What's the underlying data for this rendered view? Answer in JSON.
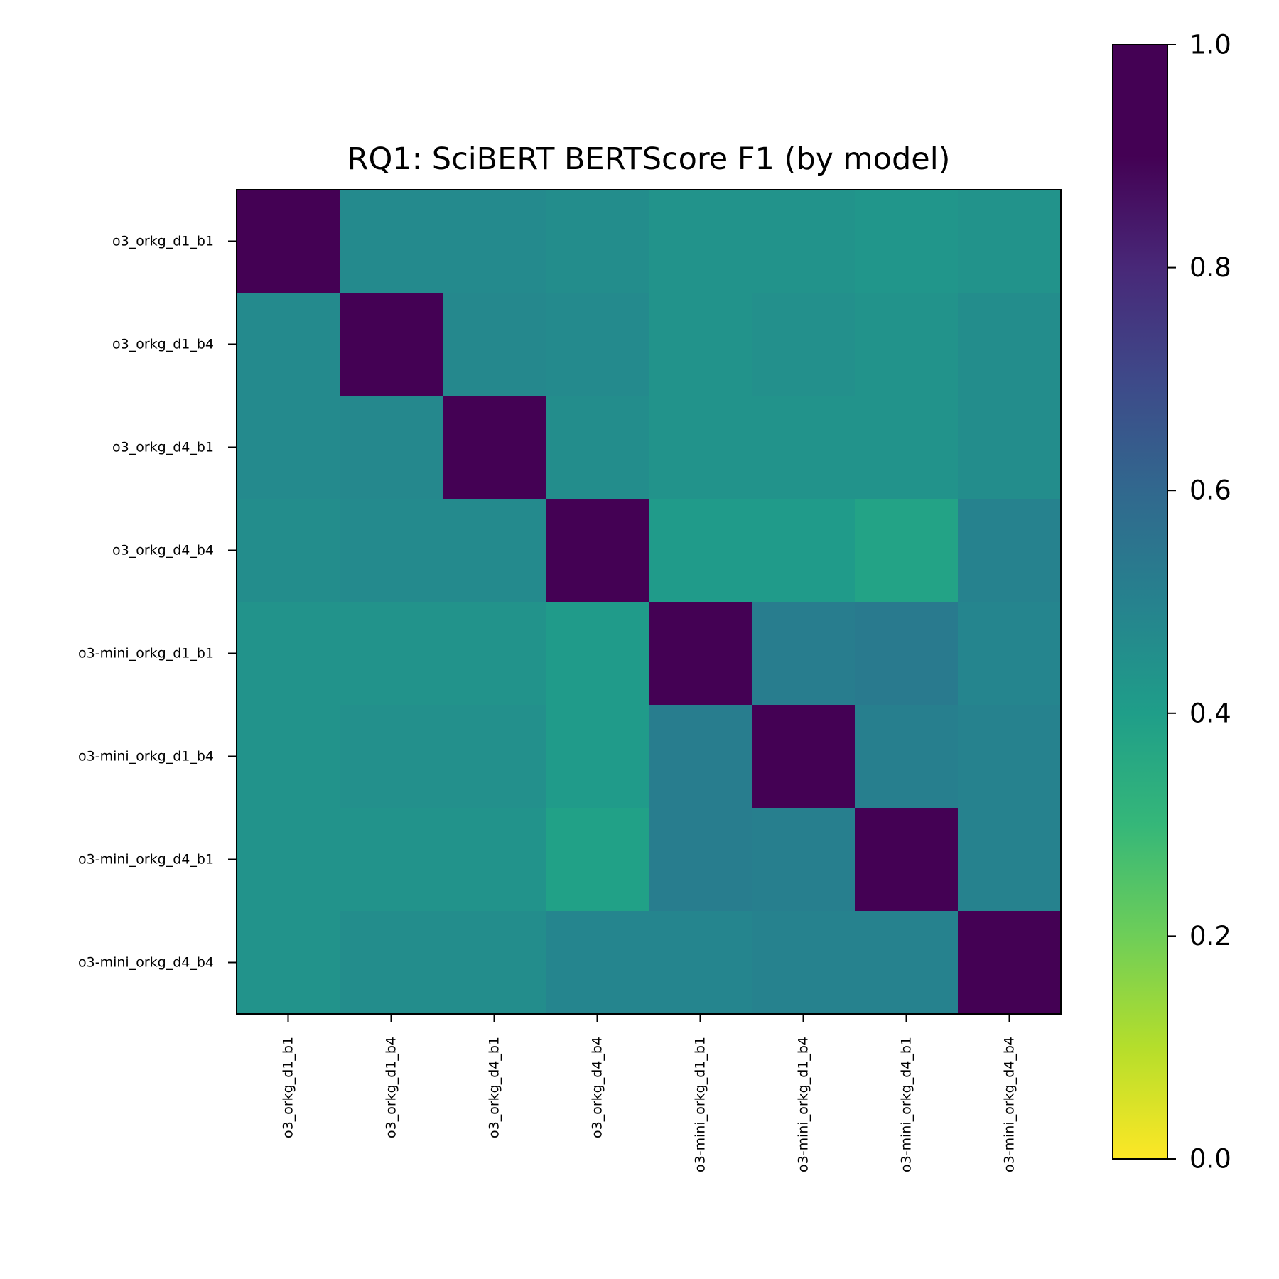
{
  "chart_data": {
    "type": "heatmap",
    "title": "RQ1: SciBERT BERTScore F1 (by model)",
    "xlabel": "",
    "ylabel": "",
    "row_labels": [
      "o3_orkg_d1_b1",
      "o3_orkg_d1_b4",
      "o3_orkg_d4_b1",
      "o3_orkg_d4_b4",
      "o3-mini_orkg_d1_b1",
      "o3-mini_orkg_d1_b4",
      "o3-mini_orkg_d4_b1",
      "o3-mini_orkg_d4_b4"
    ],
    "col_labels": [
      "o3_orkg_d1_b1",
      "o3_orkg_d1_b4",
      "o3_orkg_d4_b1",
      "o3_orkg_d4_b4",
      "o3-mini_orkg_d1_b1",
      "o3-mini_orkg_d1_b4",
      "o3-mini_orkg_d4_b1",
      "o3-mini_orkg_d4_b4"
    ],
    "values": [
      [
        1.0,
        0.57,
        0.57,
        0.56,
        0.54,
        0.54,
        0.53,
        0.54
      ],
      [
        0.57,
        1.0,
        0.58,
        0.57,
        0.54,
        0.55,
        0.54,
        0.56
      ],
      [
        0.57,
        0.58,
        1.0,
        0.56,
        0.54,
        0.54,
        0.54,
        0.56
      ],
      [
        0.56,
        0.57,
        0.57,
        1.0,
        0.51,
        0.51,
        0.48,
        0.6
      ],
      [
        0.54,
        0.54,
        0.54,
        0.51,
        1.0,
        0.62,
        0.63,
        0.59
      ],
      [
        0.54,
        0.55,
        0.55,
        0.51,
        0.62,
        1.0,
        0.61,
        0.6
      ],
      [
        0.54,
        0.54,
        0.54,
        0.49,
        0.62,
        0.61,
        1.0,
        0.6
      ],
      [
        0.54,
        0.56,
        0.56,
        0.59,
        0.59,
        0.6,
        0.6,
        1.0
      ]
    ],
    "colormap": "viridis_r",
    "vmin": 0.0,
    "vmax": 1.0,
    "colorbar_ticks": [
      "0.0",
      "0.2",
      "0.4",
      "0.6",
      "0.8",
      "1.0"
    ],
    "grid": false,
    "legend": "colorbar-right"
  }
}
